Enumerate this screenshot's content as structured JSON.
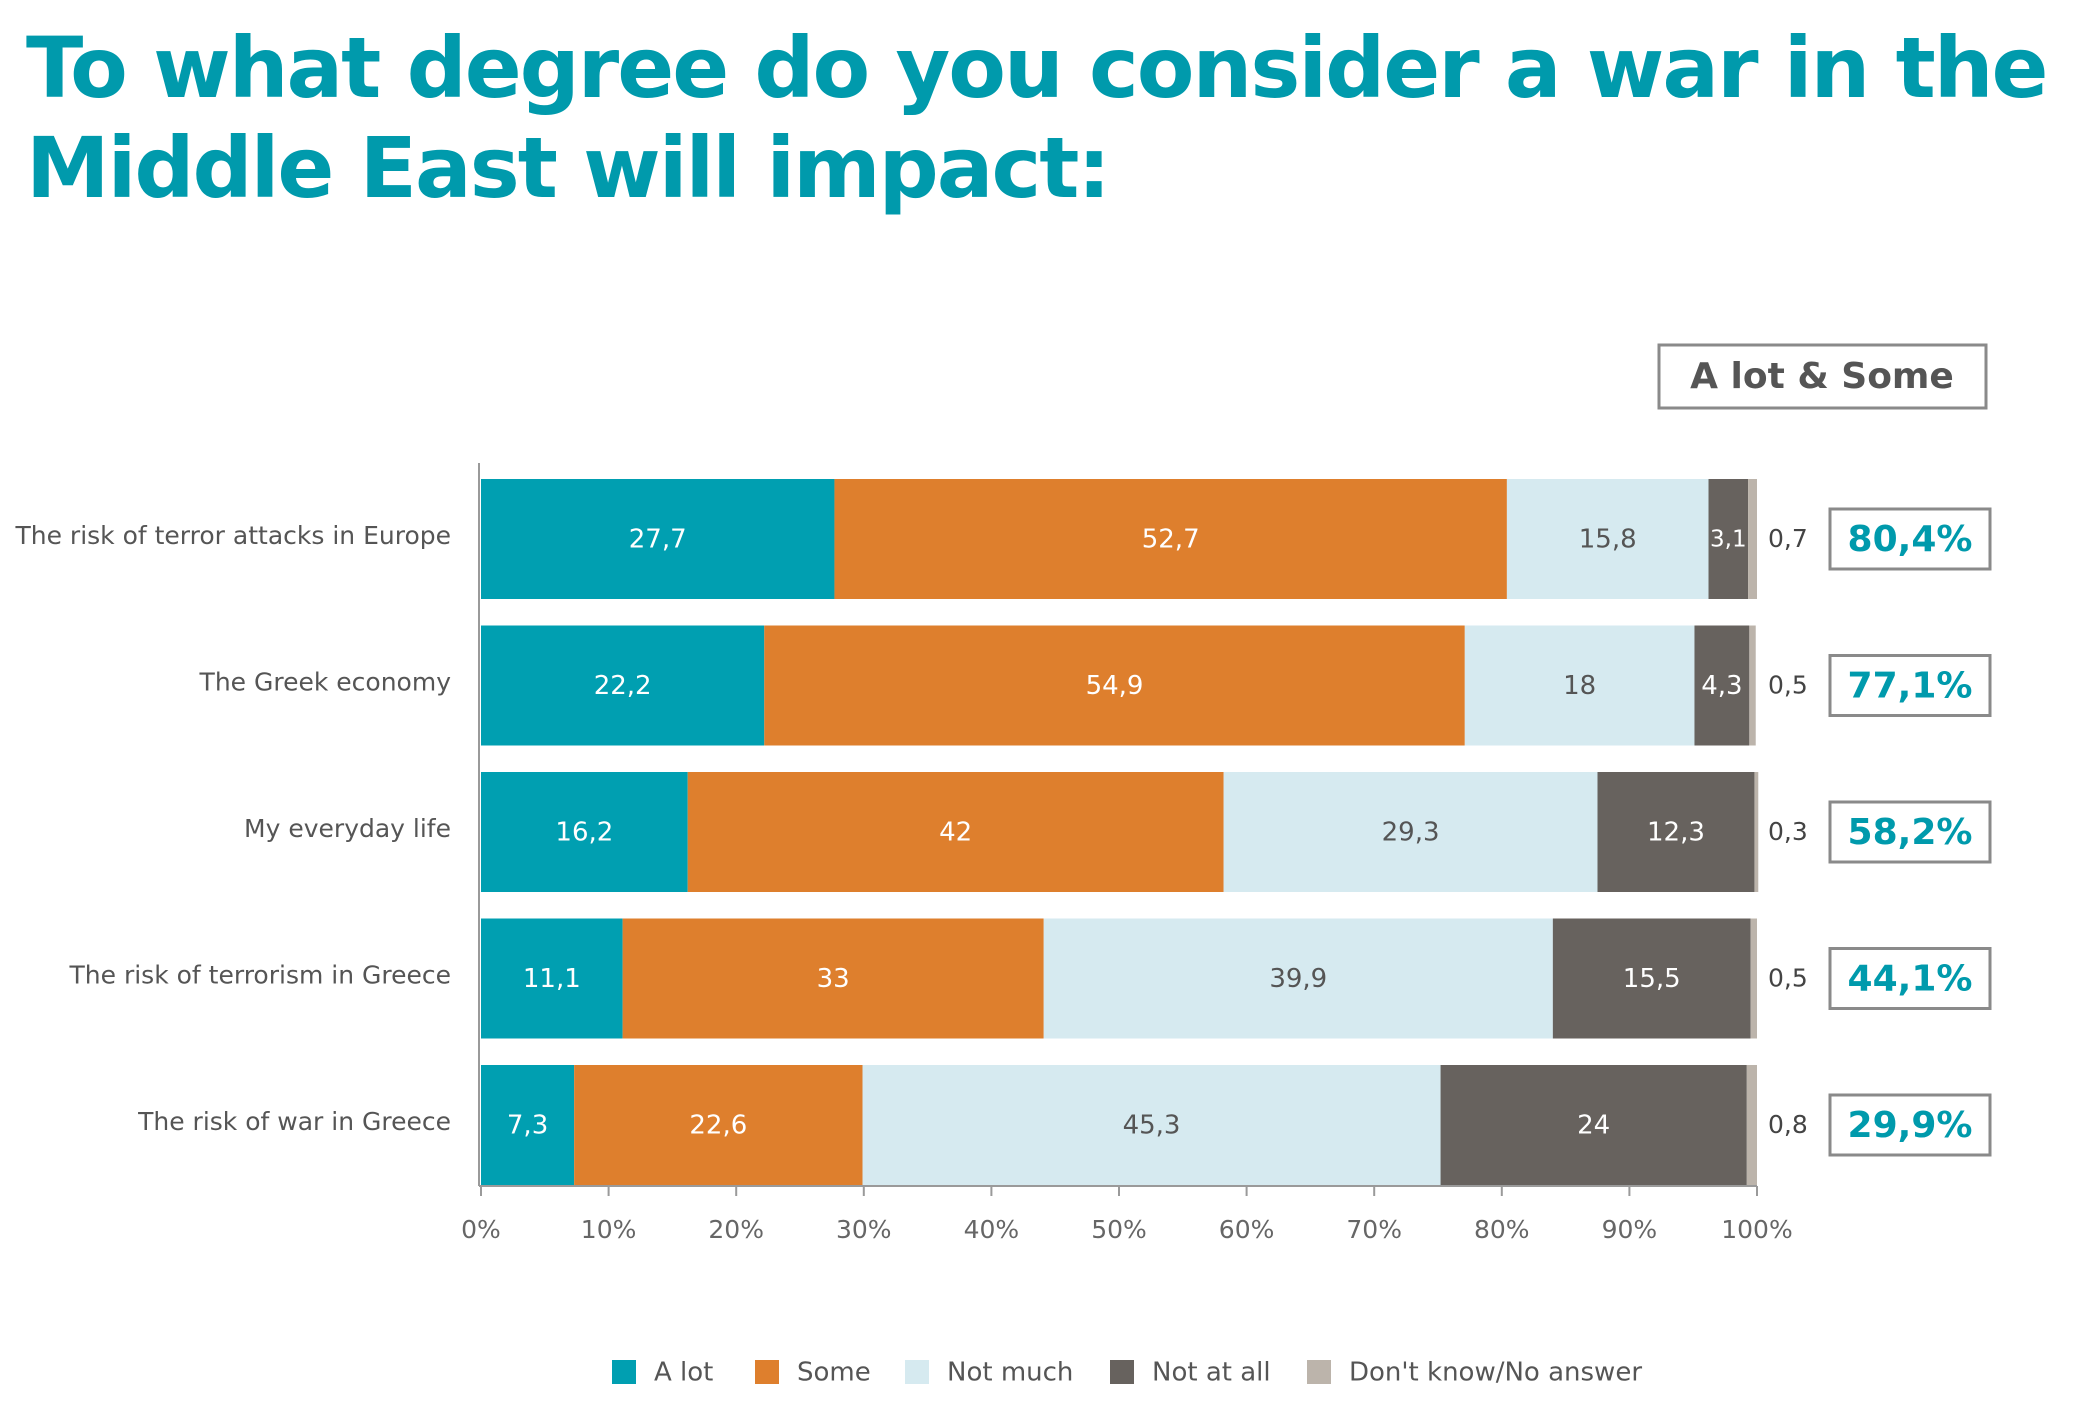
{
  "title": "To what degree do you consider a war in the Middle East will impact:",
  "summary_header": "A lot & Some",
  "colors": {
    "title": "#009aac",
    "a_lot": "#009fb1",
    "some": "#de7f2d",
    "not_much": "#d6eaf0",
    "not_at_all": "#67625e",
    "dont_know": "#bcb4ab",
    "axis": "#9a9a9a",
    "summary_text": "#009aac"
  },
  "chart_data": {
    "type": "bar",
    "orientation": "horizontal",
    "stacked": true,
    "categories": [
      "The risk of terror attacks in Europe",
      "The Greek economy",
      "My everyday life",
      "The risk of terrorism in Greece",
      "The risk of war in Greece"
    ],
    "series": [
      {
        "name": "A lot",
        "color": "#009fb1",
        "label_color": "#ffffff",
        "values": [
          27.7,
          22.2,
          16.2,
          11.1,
          7.3
        ],
        "labels": [
          "27,7",
          "22,2",
          "16,2",
          "11,1",
          "7,3"
        ]
      },
      {
        "name": "Some",
        "color": "#de7f2d",
        "label_color": "#ffffff",
        "values": [
          52.7,
          54.9,
          42,
          33,
          22.6
        ],
        "labels": [
          "52,7",
          "54,9",
          "42",
          "33",
          "22,6"
        ]
      },
      {
        "name": "Not much",
        "color": "#d6eaf0",
        "label_color": "#555555",
        "values": [
          15.8,
          18,
          29.3,
          39.9,
          45.3
        ],
        "labels": [
          "15,8",
          "18",
          "29,3",
          "39,9",
          "45,3"
        ]
      },
      {
        "name": "Not at all",
        "color": "#67625e",
        "label_color": "#ffffff",
        "values": [
          3.1,
          4.3,
          12.3,
          15.5,
          24
        ],
        "labels": [
          "3,1",
          "4,3",
          "12,3",
          "15,5",
          "24"
        ]
      },
      {
        "name": "Don't know/No answer",
        "color": "#bcb4ab",
        "label_color": "#444444",
        "values": [
          0.7,
          0.5,
          0.3,
          0.5,
          0.8
        ],
        "labels": [
          "0,7",
          "0,5",
          "0,3",
          "0,5",
          "0,8"
        ]
      }
    ],
    "xlim": [
      0,
      100
    ],
    "xticks": [
      "0%",
      "10%",
      "20%",
      "30%",
      "40%",
      "50%",
      "60%",
      "70%",
      "80%",
      "90%",
      "100%"
    ],
    "summary_values": [
      "80,4%",
      "77,1%",
      "58,2%",
      "44,1%",
      "29,9%"
    ],
    "legend_position": "bottom",
    "grid": false
  }
}
